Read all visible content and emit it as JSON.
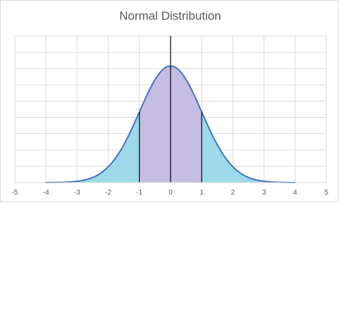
{
  "chart_data": {
    "type": "area",
    "title": "Normal Distribution",
    "xlabel": "",
    "ylabel": "",
    "xlim": [
      -5,
      5
    ],
    "x_ticks": [
      -5,
      -4,
      -3,
      -2,
      -1,
      0,
      1,
      2,
      3,
      4,
      5
    ],
    "y_gridlines": 9,
    "y_tick_labels_shown": false,
    "grid": true,
    "legend": "none",
    "distribution": {
      "mean": 0,
      "std": 1
    },
    "shaded_regions": [
      {
        "from": -4,
        "to": -1,
        "color": "#9dd9e8"
      },
      {
        "from": -1,
        "to": 1,
        "color": "#c6bde3"
      },
      {
        "from": 1,
        "to": 4,
        "color": "#9dd9e8"
      }
    ],
    "vertical_markers": [
      -1,
      0,
      1
    ],
    "curve_color": "#4472c4",
    "marker_color": "#000000",
    "grid_color": "#d9d9d9"
  }
}
